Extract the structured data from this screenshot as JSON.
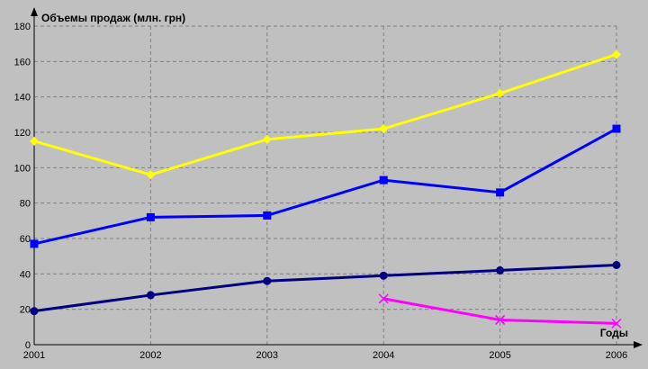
{
  "chart_data": {
    "type": "line",
    "ylabel": "Объемы продаж (млн. грн)",
    "xlabel": "Годы",
    "x": [
      "2001",
      "2002",
      "2003",
      "2004",
      "2005",
      "2006"
    ],
    "ylim": [
      0,
      180
    ],
    "yticks": [
      0,
      20,
      40,
      60,
      80,
      100,
      120,
      140,
      160,
      180
    ],
    "grid": true,
    "background": "#c0c0c0",
    "series": [
      {
        "color": "#ffff00",
        "marker": "diamond",
        "values": [
          115,
          96,
          116,
          122,
          142,
          164
        ]
      },
      {
        "color": "#0000ff",
        "marker": "square",
        "values": [
          57,
          72,
          73,
          93,
          86,
          122
        ]
      },
      {
        "color": "#000080",
        "marker": "circle",
        "values": [
          19,
          28,
          36,
          39,
          42,
          45
        ]
      },
      {
        "color": "#ff00ff",
        "marker": "x",
        "values": [
          null,
          null,
          null,
          26,
          14,
          12
        ]
      }
    ]
  }
}
